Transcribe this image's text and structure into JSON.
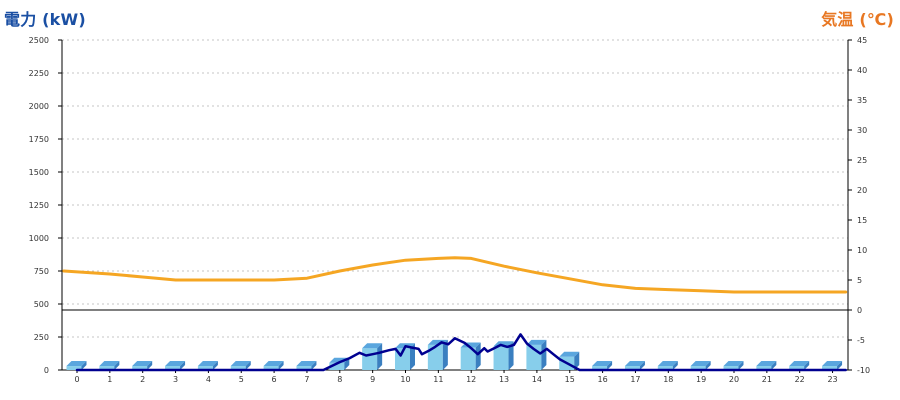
{
  "chart_data": {
    "type": "bar+line",
    "left_axis_title": "電力 (kW)",
    "right_axis_title": "気温 (℃)",
    "x_categories": [
      "0",
      "1",
      "2",
      "3",
      "4",
      "5",
      "6",
      "7",
      "8",
      "9",
      "10",
      "11",
      "12",
      "13",
      "14",
      "15",
      "16",
      "17",
      "18",
      "19",
      "20",
      "21",
      "22",
      "23"
    ],
    "left_axis": {
      "ticks": [
        0,
        250,
        500,
        750,
        1000,
        1250,
        1500,
        1750,
        2000,
        2250,
        2500
      ],
      "range": [
        0,
        2500
      ]
    },
    "right_axis": {
      "ticks": [
        -10,
        -5,
        0,
        5,
        10,
        15,
        20,
        25,
        30,
        35,
        40,
        45
      ],
      "range": [
        -10,
        45
      ]
    },
    "series": [
      {
        "kind": "bar",
        "axis": "left",
        "values": [
          30,
          30,
          30,
          30,
          30,
          30,
          30,
          30,
          55,
          165,
          165,
          190,
          170,
          180,
          190,
          100,
          30,
          30,
          30,
          30,
          30,
          30,
          30,
          30
        ]
      },
      {
        "kind": "line",
        "axis": "left",
        "color": "#000090",
        "points": [
          [
            0.0,
            0
          ],
          [
            7.5,
            0
          ],
          [
            8.0,
            60
          ],
          [
            8.3,
            90
          ],
          [
            8.6,
            130
          ],
          [
            8.8,
            110
          ],
          [
            9.0,
            120
          ],
          [
            9.2,
            130
          ],
          [
            9.5,
            150
          ],
          [
            9.7,
            160
          ],
          [
            9.85,
            110
          ],
          [
            10.0,
            180
          ],
          [
            10.2,
            170
          ],
          [
            10.4,
            160
          ],
          [
            10.5,
            120
          ],
          [
            10.7,
            145
          ],
          [
            10.9,
            175
          ],
          [
            11.1,
            210
          ],
          [
            11.3,
            195
          ],
          [
            11.5,
            240
          ],
          [
            11.8,
            205
          ],
          [
            12.0,
            165
          ],
          [
            12.2,
            120
          ],
          [
            12.4,
            165
          ],
          [
            12.5,
            140
          ],
          [
            12.7,
            165
          ],
          [
            12.9,
            190
          ],
          [
            13.1,
            175
          ],
          [
            13.3,
            190
          ],
          [
            13.5,
            270
          ],
          [
            13.7,
            200
          ],
          [
            13.9,
            160
          ],
          [
            14.1,
            125
          ],
          [
            14.3,
            160
          ],
          [
            14.5,
            120
          ],
          [
            14.7,
            80
          ],
          [
            15.0,
            40
          ],
          [
            15.3,
            0
          ],
          [
            23.4,
            0
          ]
        ]
      },
      {
        "kind": "line",
        "axis": "right",
        "color": "#f5a623",
        "points": [
          [
            -0.4,
            6.5
          ],
          [
            1.0,
            6.0
          ],
          [
            2.0,
            5.5
          ],
          [
            3.0,
            5.0
          ],
          [
            4.0,
            5.0
          ],
          [
            5.0,
            5.0
          ],
          [
            6.0,
            5.0
          ],
          [
            7.0,
            5.3
          ],
          [
            8.0,
            6.5
          ],
          [
            9.0,
            7.5
          ],
          [
            10.0,
            8.3
          ],
          [
            11.0,
            8.6
          ],
          [
            11.5,
            8.7
          ],
          [
            12.0,
            8.6
          ],
          [
            13.0,
            7.3
          ],
          [
            14.0,
            6.2
          ],
          [
            15.0,
            5.2
          ],
          [
            16.0,
            4.2
          ],
          [
            17.0,
            3.6
          ],
          [
            18.0,
            3.4
          ],
          [
            19.0,
            3.2
          ],
          [
            20.0,
            3.0
          ],
          [
            21.0,
            3.0
          ],
          [
            22.0,
            3.0
          ],
          [
            23.0,
            3.0
          ],
          [
            23.4,
            3.0
          ]
        ]
      }
    ],
    "grid": "horizontal dashed",
    "colors": {
      "bar_front": "#87ceeb",
      "bar_side": "#3a7fc0",
      "bar_top": "#5aa6de",
      "left_title": "#1a4fa3",
      "right_title": "#e87722"
    }
  }
}
